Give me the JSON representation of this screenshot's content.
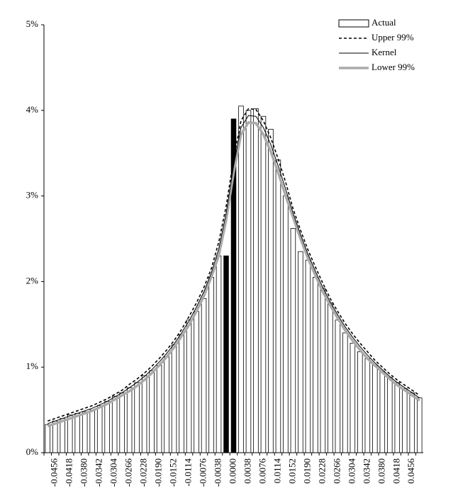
{
  "chart_data": {
    "type": "bar",
    "categories": [
      null,
      "-0.0456",
      null,
      "-0.0418",
      null,
      "-0.0380",
      null,
      "-0.0342",
      null,
      "-0.0304",
      null,
      "-0.0266",
      null,
      "-0.0228",
      null,
      "-0.0190",
      null,
      "-0.0152",
      null,
      "-0.0114",
      null,
      "-0.0076",
      null,
      "-0.0038",
      null,
      "0.0000",
      null,
      "0.0038",
      null,
      "0.0076",
      null,
      "0.0114",
      null,
      "0.0152",
      null,
      "0.0190",
      null,
      "0.0228",
      null,
      "0.0266",
      null,
      "0.0304",
      null,
      "0.0342",
      null,
      "0.0380",
      null,
      "0.0418",
      null,
      "0.0456",
      null
    ],
    "series": [
      {
        "name": "Actual",
        "type": "bar",
        "color": "#000000",
        "colors": [
          "#ffffff",
          "#ffffff",
          "#ffffff",
          "#ffffff",
          "#ffffff",
          "#ffffff",
          "#ffffff",
          "#ffffff",
          "#ffffff",
          "#ffffff",
          "#ffffff",
          "#ffffff",
          "#ffffff",
          "#ffffff",
          "#ffffff",
          "#ffffff",
          "#ffffff",
          "#ffffff",
          "#ffffff",
          "#ffffff",
          "#ffffff",
          "#ffffff",
          "#ffffff",
          "#ffffff",
          "#000000",
          "#000000",
          "#ffffff",
          "#ffffff",
          "#ffffff",
          "#ffffff",
          "#ffffff",
          "#ffffff",
          "#ffffff",
          "#ffffff",
          "#ffffff",
          "#ffffff",
          "#ffffff",
          "#ffffff",
          "#ffffff",
          "#ffffff",
          "#ffffff",
          "#ffffff",
          "#ffffff",
          "#ffffff",
          "#ffffff",
          "#ffffff",
          "#ffffff",
          "#ffffff",
          "#ffffff",
          "#ffffff",
          "#ffffff"
        ],
        "values": [
          0.33,
          0.37,
          0.4,
          0.44,
          0.46,
          0.48,
          0.5,
          0.55,
          0.6,
          0.66,
          0.7,
          0.76,
          0.82,
          0.9,
          0.96,
          1.02,
          1.12,
          1.26,
          1.38,
          1.55,
          1.65,
          1.8,
          2.05,
          2.3,
          2.3,
          3.9,
          4.05,
          4.0,
          4.02,
          3.93,
          3.78,
          3.42,
          3.0,
          2.62,
          2.35,
          2.25,
          2.05,
          1.92,
          1.75,
          1.55,
          1.4,
          1.28,
          1.18,
          1.1,
          1.02,
          0.95,
          0.88,
          0.82,
          0.75,
          0.7,
          0.64
        ]
      },
      {
        "name": "Upper 99%",
        "type": "line",
        "color": "#000000",
        "line_style": "dashed",
        "line_width": 1.6,
        "values": [
          0.37,
          0.4,
          0.43,
          0.46,
          0.49,
          0.52,
          0.55,
          0.59,
          0.63,
          0.68,
          0.73,
          0.8,
          0.86,
          0.93,
          1.01,
          1.1,
          1.2,
          1.31,
          1.44,
          1.59,
          1.75,
          1.93,
          2.15,
          2.46,
          2.88,
          3.43,
          3.88,
          4.02,
          4.01,
          3.88,
          3.68,
          3.43,
          3.16,
          2.85,
          2.6,
          2.37,
          2.17,
          1.98,
          1.8,
          1.65,
          1.51,
          1.39,
          1.28,
          1.18,
          1.08,
          1.0,
          0.92,
          0.85,
          0.79,
          0.73,
          0.67
        ]
      },
      {
        "name": "Kernel",
        "type": "line",
        "color": "#000000",
        "line_style": "solid",
        "line_width": 1,
        "values": [
          0.34,
          0.37,
          0.4,
          0.43,
          0.46,
          0.49,
          0.52,
          0.56,
          0.6,
          0.65,
          0.7,
          0.76,
          0.82,
          0.89,
          0.97,
          1.06,
          1.16,
          1.27,
          1.4,
          1.54,
          1.7,
          1.88,
          2.1,
          2.38,
          2.8,
          3.35,
          3.8,
          3.94,
          3.93,
          3.8,
          3.6,
          3.35,
          3.08,
          2.8,
          2.55,
          2.32,
          2.12,
          1.93,
          1.76,
          1.61,
          1.47,
          1.35,
          1.24,
          1.14,
          1.05,
          0.97,
          0.89,
          0.82,
          0.76,
          0.7,
          0.64
        ]
      },
      {
        "name": "Lower 99%",
        "type": "line",
        "color": "#aaaaaa",
        "line_style": "solid",
        "line_width": 3.5,
        "values": [
          0.31,
          0.34,
          0.37,
          0.4,
          0.43,
          0.46,
          0.49,
          0.53,
          0.57,
          0.62,
          0.67,
          0.72,
          0.78,
          0.85,
          0.93,
          1.02,
          1.12,
          1.23,
          1.36,
          1.49,
          1.65,
          1.83,
          2.05,
          2.3,
          2.72,
          3.27,
          3.72,
          3.86,
          3.85,
          3.72,
          3.52,
          3.27,
          3.0,
          2.75,
          2.5,
          2.27,
          2.07,
          1.88,
          1.72,
          1.57,
          1.43,
          1.31,
          1.2,
          1.1,
          1.02,
          0.94,
          0.86,
          0.79,
          0.73,
          0.67,
          0.61
        ]
      }
    ],
    "ylim": [
      0,
      5
    ],
    "yticks": [
      {
        "value": 0,
        "label": "0%"
      },
      {
        "value": 1,
        "label": "1%"
      },
      {
        "value": 2,
        "label": "2%"
      },
      {
        "value": 3,
        "label": "3%"
      },
      {
        "value": 4,
        "label": "4%"
      },
      {
        "value": 5,
        "label": "5%"
      }
    ],
    "grid": false,
    "legend": "top-right"
  }
}
